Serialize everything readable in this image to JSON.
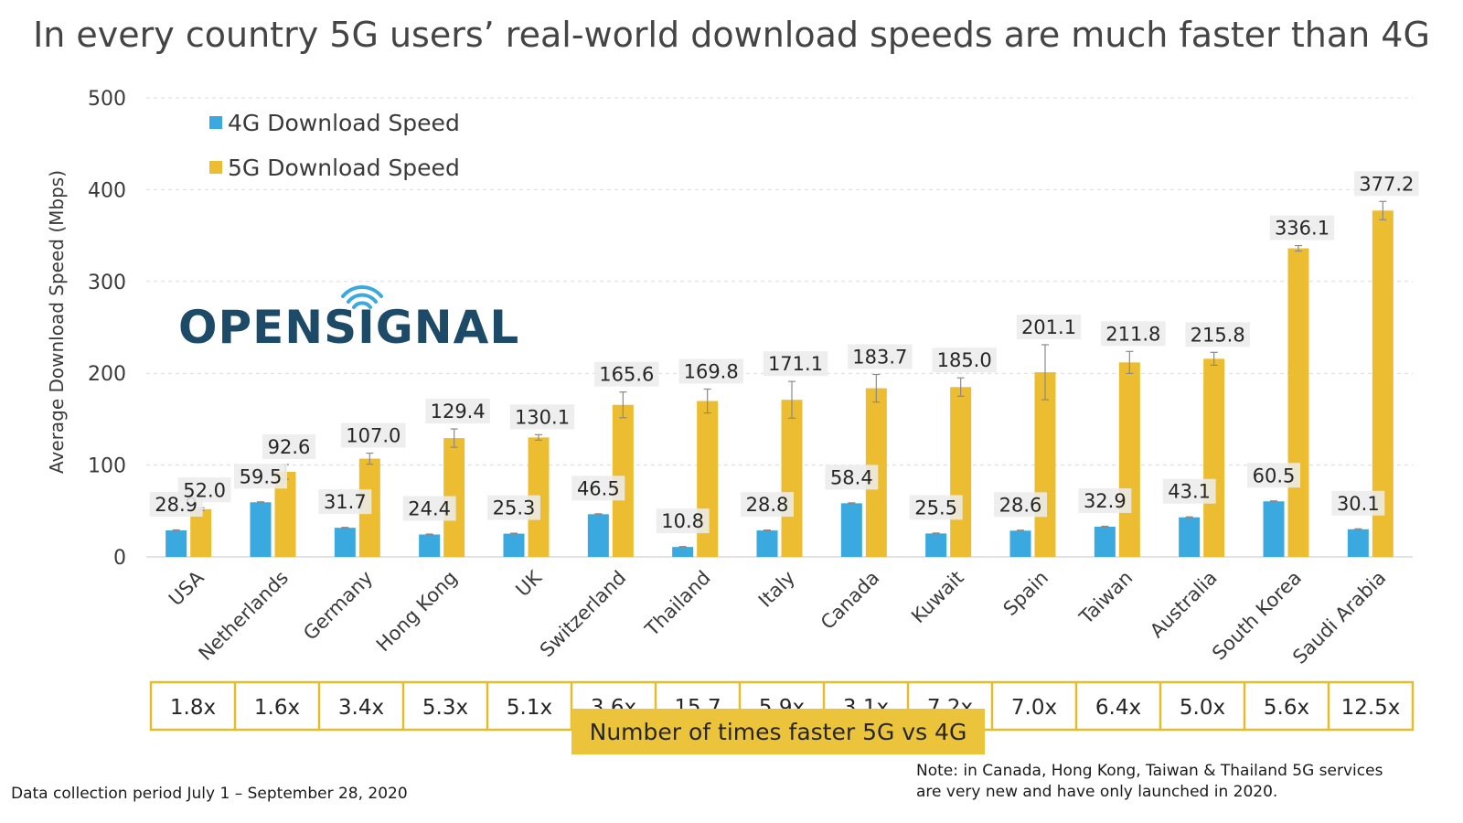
{
  "chart_data": {
    "type": "bar",
    "title": "In every country 5G users’ real-world download speeds are much faster than 4G",
    "ylabel": "Average Download Speed (Mbps)",
    "xlabel": "",
    "ylim": [
      0,
      500
    ],
    "yticks": [
      "0",
      "100",
      "200",
      "300",
      "400",
      "500"
    ],
    "grid": true,
    "legend_position": "top-left",
    "categories": [
      "USA",
      "Netherlands",
      "Germany",
      "Hong Kong",
      "UK",
      "Switzerland",
      "Thailand",
      "Italy",
      "Canada",
      "Kuwait",
      "Spain",
      "Taiwan",
      "Australia",
      "South Korea",
      "Saudi Arabia"
    ],
    "series": [
      {
        "name": "4G Download Speed",
        "color": "#39a9df",
        "values": [
          28.9,
          59.5,
          31.7,
          24.4,
          25.3,
          46.5,
          10.8,
          28.8,
          58.4,
          25.5,
          28.6,
          32.9,
          43.1,
          60.5,
          30.1
        ],
        "labels": [
          "28.9",
          "59.5",
          "31.7",
          "24.4",
          "25.3",
          "46.5",
          "10.8",
          "28.8",
          "58.4",
          "25.5",
          "28.6",
          "32.9",
          "43.1",
          "60.5",
          "30.1"
        ],
        "error": [
          0.5,
          0.5,
          0.5,
          0.5,
          0.5,
          0.5,
          0.5,
          0.5,
          0.5,
          0.5,
          0.5,
          0.5,
          0.5,
          0.5,
          0.5
        ]
      },
      {
        "name": "5G Download Speed",
        "color": "#ecbc31",
        "values": [
          52.0,
          92.6,
          107.0,
          129.4,
          130.1,
          165.6,
          169.8,
          171.1,
          183.7,
          185.0,
          201.1,
          211.8,
          215.8,
          336.1,
          377.2
        ],
        "labels": [
          "52.0",
          "92.6",
          "107.0",
          "129.4",
          "130.1",
          "165.6",
          "169.8",
          "171.1",
          "183.7",
          "185.0",
          "201.1",
          "211.8",
          "215.8",
          "336.1",
          "377.2"
        ],
        "error": [
          1.5,
          8,
          6,
          10,
          3,
          14,
          13,
          20,
          15,
          10,
          30,
          12,
          7,
          3,
          10
        ]
      }
    ],
    "factors": [
      "1.8x",
      "1.6x",
      "3.4x",
      "5.3x",
      "5.1x",
      "3.6x",
      "15.7",
      "5.9x",
      "3.1x",
      "7.2x",
      "7.0x",
      "6.4x",
      "5.0x",
      "5.6x",
      "12.5x"
    ],
    "factors_label": "Number of times faster 5G vs 4G"
  },
  "logo": {
    "text": "OPENSIGNAL",
    "color": "#1d4a66",
    "accent": "#39a9df"
  },
  "footer": {
    "period": "Data collection period July 1 – September 28, 2020",
    "note_line1": "Note: in Canada, Hong Kong, Taiwan & Thailand 5G services",
    "note_line2": "are very new and have only launched in 2020."
  },
  "colors": {
    "grid": "#d9d9d9",
    "label_bg": "#ececec",
    "table_border": "#e3bd2c",
    "banner_bg": "#ecc43c"
  }
}
